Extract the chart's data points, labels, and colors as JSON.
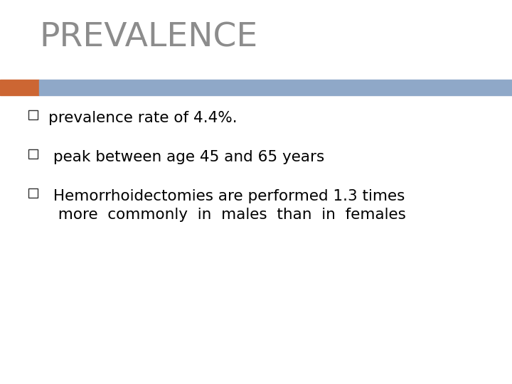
{
  "title": "PREVALENCE",
  "title_color": "#8C8C8C",
  "title_fontsize": 34,
  "background_color": "#FFFFFF",
  "bar_left_color": "#CC6633",
  "bar_right_color": "#8FA8C8",
  "bullet_points": [
    "prevalence rate of 4.4%.",
    " peak between age 45 and 65 years",
    " Hemorrhoidectomies are performed 1.3 times\n  more  commonly  in  males  than  in  females"
  ],
  "bullet_fontsize": 15.5,
  "text_color": "#000000",
  "square_bullet_color": "#333333"
}
